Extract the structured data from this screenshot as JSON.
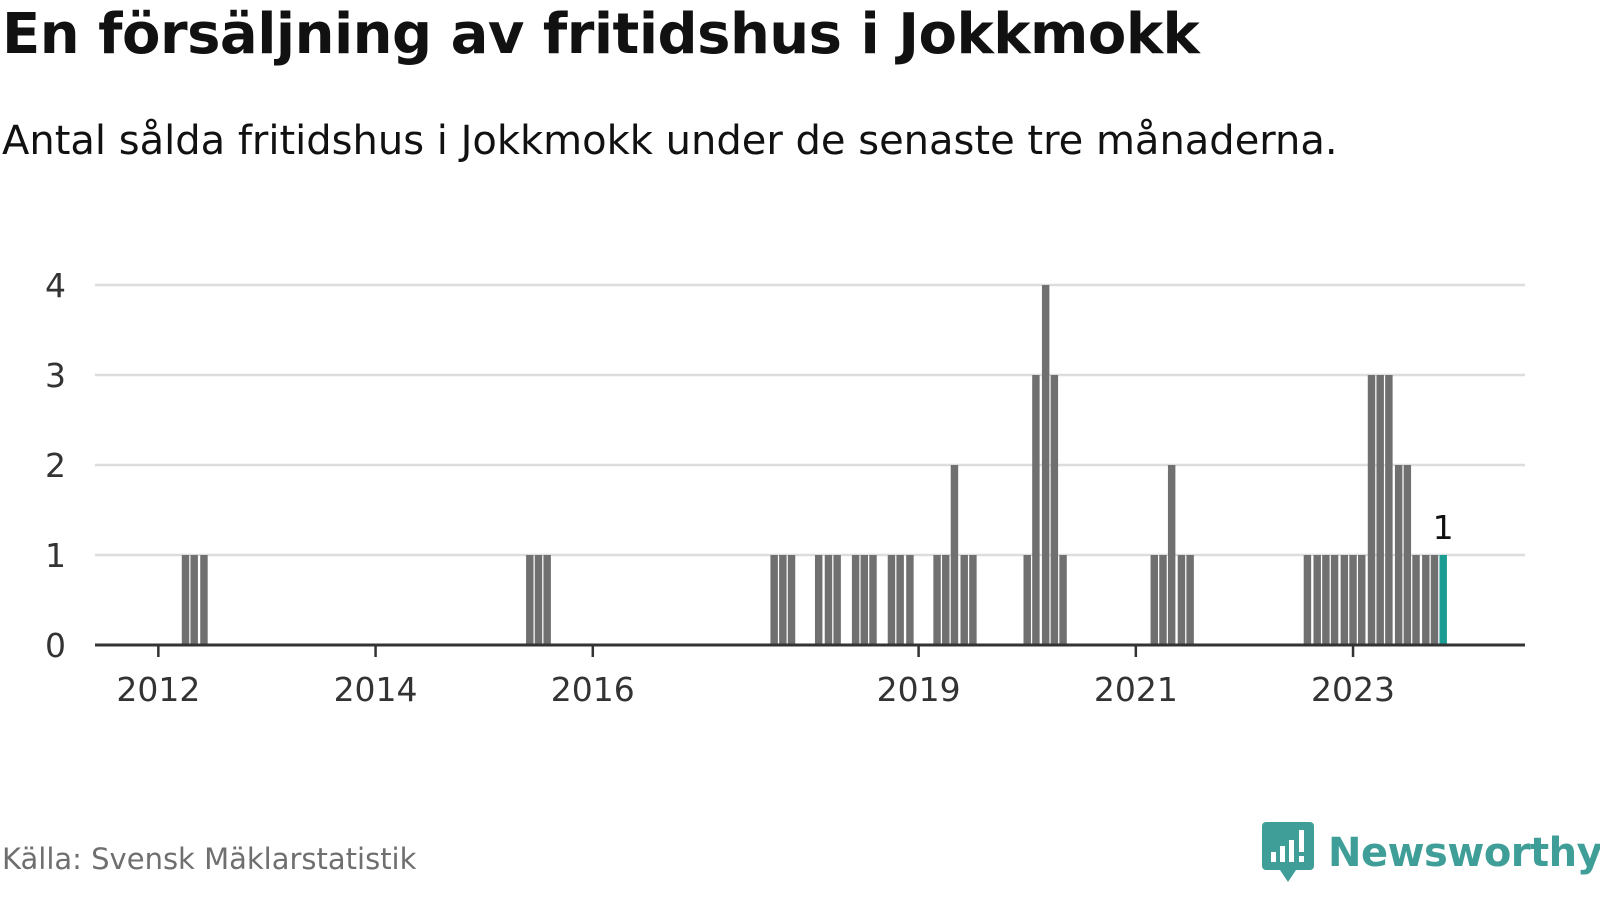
{
  "title": "En försäljning av fritidshus i Jokkmokk",
  "subtitle": "Antal sålda fritidshus i Jokkmokk under de senaste tre månaderna.",
  "source": "Källa: Svensk Mäklarstatistik",
  "brand": {
    "name": "Newsworthy"
  },
  "colors": {
    "bar": "#707070",
    "highlight": "#1a9c93",
    "grid": "#dddddd",
    "axis": "#333333",
    "text": "#333333",
    "source": "#6f6f6f",
    "brand": "#3f9e98"
  },
  "chart_data": {
    "type": "bar",
    "title": "En försäljning av fritidshus i Jokkmokk",
    "xlabel": "",
    "ylabel": "",
    "ylim": [
      0,
      4
    ],
    "yticks": [
      "0",
      "1",
      "2",
      "3",
      "4"
    ],
    "xticks": [
      {
        "label": "2012",
        "value": 2012.0
      },
      {
        "label": "2014",
        "value": 2014.0
      },
      {
        "label": "2016",
        "value": 2016.0
      },
      {
        "label": "2019",
        "value": 2019.0
      },
      {
        "label": "2021",
        "value": 2021.0
      },
      {
        "label": "2023",
        "value": 2023.0
      }
    ],
    "x_domain": [
      2011.4167,
      2024.5833
    ],
    "bar_width_years": 0.0833,
    "highlight_index": 73,
    "last_value_label": "1",
    "series": [
      {
        "name": "Antal sålda fritidshus",
        "x": [
          2012.25,
          2012.33,
          2012.42,
          2015.42,
          2015.5,
          2015.58,
          2017.67,
          2017.75,
          2017.83,
          2018.08,
          2018.17,
          2018.25,
          2018.42,
          2018.5,
          2018.58,
          2018.75,
          2018.83,
          2018.92,
          2019.17,
          2019.25,
          2019.33,
          2019.42,
          2019.5,
          2020.0,
          2020.08,
          2020.17,
          2020.25,
          2020.33,
          2021.17,
          2021.25,
          2021.33,
          2021.42,
          2021.5,
          2022.58,
          2022.67,
          2022.75,
          2022.83,
          2022.92,
          2023.0,
          2023.08,
          2023.17,
          2023.25,
          2023.33,
          2023.42,
          2023.5,
          2023.58,
          2023.67,
          2023.75,
          2023.83
        ],
        "values": [
          1,
          1,
          1,
          1,
          1,
          1,
          1,
          1,
          1,
          1,
          1,
          1,
          1,
          1,
          1,
          1,
          1,
          1,
          1,
          1,
          2,
          1,
          1,
          1,
          3,
          4,
          3,
          1,
          1,
          1,
          2,
          1,
          1,
          1,
          1,
          1,
          1,
          1,
          1,
          1,
          3,
          3,
          3,
          2,
          2,
          1,
          1,
          1,
          1
        ]
      }
    ]
  }
}
